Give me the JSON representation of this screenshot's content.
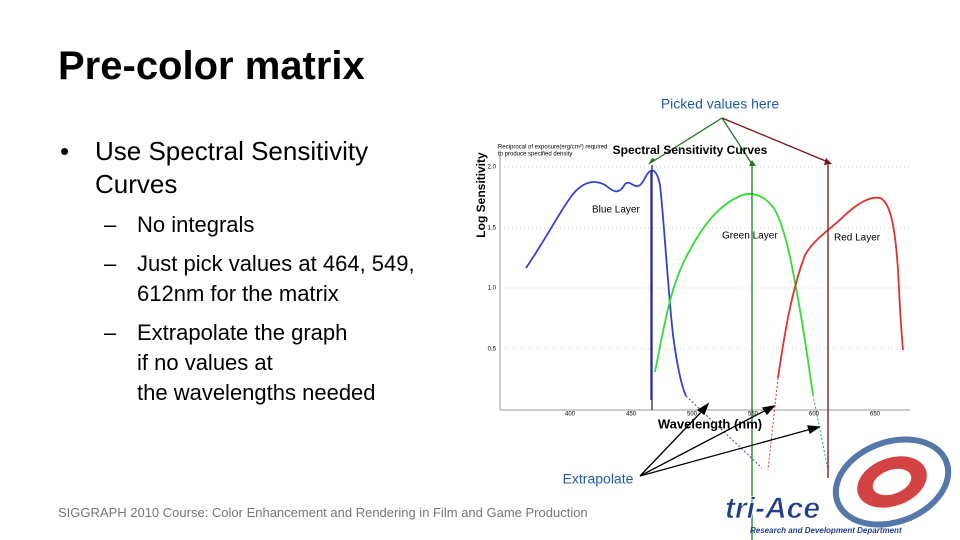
{
  "header": {
    "title": "Pre-color matrix"
  },
  "bullets": [
    {
      "lines": [
        "Use Spectral Sensitivity",
        "Curves"
      ],
      "subitems": [
        {
          "lines": [
            "No integrals"
          ]
        },
        {
          "lines": [
            "Just pick values at 464, 549,",
            "612nm for the matrix"
          ]
        },
        {
          "lines": [
            "Extrapolate the graph",
            "if no values at",
            "the wavelengths needed"
          ]
        }
      ]
    }
  ],
  "figure": {
    "title": "Spectral Sensitivity Curves",
    "note": [
      "Reciprocal of exposure(erg/cm²) required",
      "to produce specified density"
    ],
    "y_label": "Log Sensitivity",
    "x_label": "Wavelength (nm)",
    "yticks": [
      "2.0",
      "1.5",
      "1.0",
      "0.5"
    ],
    "xticks": [
      "400",
      "450",
      "500",
      "550",
      "600",
      "650"
    ],
    "curve_labels": [
      "Blue Layer",
      "Green Layer",
      "Red Layer"
    ],
    "callout_top": "Picked values here",
    "callout_bottom": "Extrapolate"
  },
  "footer": {
    "text": "SIGGRAPH 2010 Course: Color Enhancement and Rendering in Film and Game Production"
  },
  "logo": {
    "name": "tri-Ace",
    "subtitle": "Research and Development Department"
  }
}
